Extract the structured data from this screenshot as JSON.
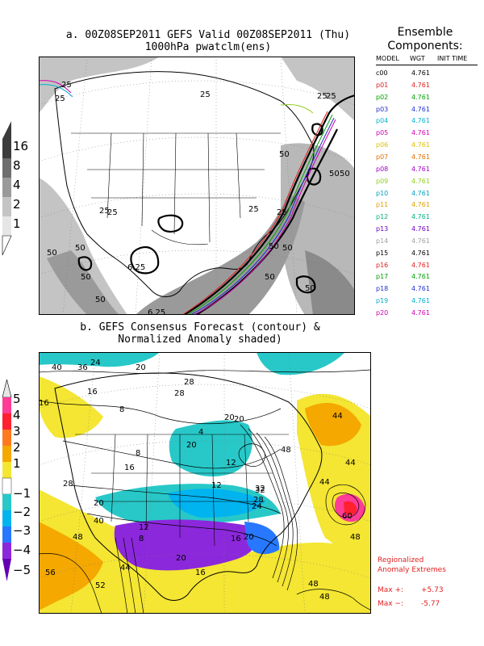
{
  "panel_a": {
    "title_line1": "a. 00Z08SEP2011 GEFS Valid 00Z08SEP2011 (Thu)",
    "title_line2": "1000hPa pwatclm(ens)",
    "colorbar": {
      "levels": [
        "16",
        "8",
        "4",
        "2",
        "1"
      ],
      "colors": [
        "#3c3c3c",
        "#6e6e6e",
        "#9a9a9a",
        "#c4c4c4",
        "#e6e6e6"
      ]
    },
    "contour_labels": [
      "25",
      "25",
      "25",
      "25",
      "25",
      "25",
      "25",
      "25",
      "50",
      "50",
      "50",
      "50",
      "50",
      "50",
      "50",
      "50",
      "50",
      "50",
      "50",
      "6.25",
      "6.25",
      "25"
    ]
  },
  "ensemble": {
    "title_line1": "Ensemble",
    "title_line2": "Components:",
    "headers": {
      "model": "MODEL",
      "wgt": "WGT",
      "init": "INIT TIME"
    },
    "members": [
      {
        "name": "c00",
        "wgt": "4.761",
        "color": "#000000"
      },
      {
        "name": "p01",
        "wgt": "4.761",
        "color": "#e02020"
      },
      {
        "name": "p02",
        "wgt": "4.761",
        "color": "#00a000"
      },
      {
        "name": "p03",
        "wgt": "4.761",
        "color": "#2030d0"
      },
      {
        "name": "p04",
        "wgt": "4.761",
        "color": "#00b0d0"
      },
      {
        "name": "p05",
        "wgt": "4.761",
        "color": "#d000b0"
      },
      {
        "name": "p06",
        "wgt": "4.761",
        "color": "#e0c000"
      },
      {
        "name": "p07",
        "wgt": "4.761",
        "color": "#e07000"
      },
      {
        "name": "p08",
        "wgt": "4.761",
        "color": "#a000c0"
      },
      {
        "name": "p09",
        "wgt": "4.761",
        "color": "#90d020"
      },
      {
        "name": "p10",
        "wgt": "4.761",
        "color": "#00a0c0"
      },
      {
        "name": "p11",
        "wgt": "4.761",
        "color": "#e0a000"
      },
      {
        "name": "p12",
        "wgt": "4.761",
        "color": "#00b080"
      },
      {
        "name": "p13",
        "wgt": "4.761",
        "color": "#7000c0"
      },
      {
        "name": "p14",
        "wgt": "4.761",
        "color": "#a0a0a0"
      },
      {
        "name": "p15",
        "wgt": "4.761",
        "color": "#000000"
      },
      {
        "name": "p16",
        "wgt": "4.761",
        "color": "#e02020"
      },
      {
        "name": "p17",
        "wgt": "4.761",
        "color": "#00a000"
      },
      {
        "name": "p18",
        "wgt": "4.761",
        "color": "#2030d0"
      },
      {
        "name": "p19",
        "wgt": "4.761",
        "color": "#00b0d0"
      },
      {
        "name": "p20",
        "wgt": "4.761",
        "color": "#d000b0"
      }
    ]
  },
  "panel_b": {
    "title_line1": "b. GEFS Consensus Forecast (contour) &",
    "title_line2": "Normalized Anomaly shaded)",
    "colorbar": {
      "levels": [
        "5",
        "4",
        "3",
        "2",
        "1",
        "−1",
        "−2",
        "−3",
        "−4",
        "−5"
      ],
      "colors": [
        "#ff3c96",
        "#ff2030",
        "#ff7a1e",
        "#f4a800",
        "#f4e632",
        "#28c8c8",
        "#00b4f0",
        "#2878ff",
        "#8c28dc",
        "#6400b4"
      ]
    },
    "contour_labels": [
      "40",
      "36",
      "24",
      "20",
      "16",
      "28",
      "16",
      "8",
      "20",
      "28",
      "20",
      "4",
      "8",
      "20",
      "12",
      "16",
      "44",
      "48",
      "44",
      "44",
      "12",
      "32",
      "28",
      "20",
      "24",
      "12",
      "8",
      "20",
      "20",
      "16",
      "28",
      "40",
      "48",
      "56",
      "52",
      "44",
      "48",
      "48",
      "60",
      "48",
      "16",
      "32"
    ]
  },
  "extremes": {
    "title_line1": "Regionalized",
    "title_line2": "Anomaly Extremes",
    "max_plus_label": "Max +:",
    "max_plus_value": "+5.73",
    "max_minus_label": "Max −:",
    "max_minus_value": "-5.77"
  }
}
